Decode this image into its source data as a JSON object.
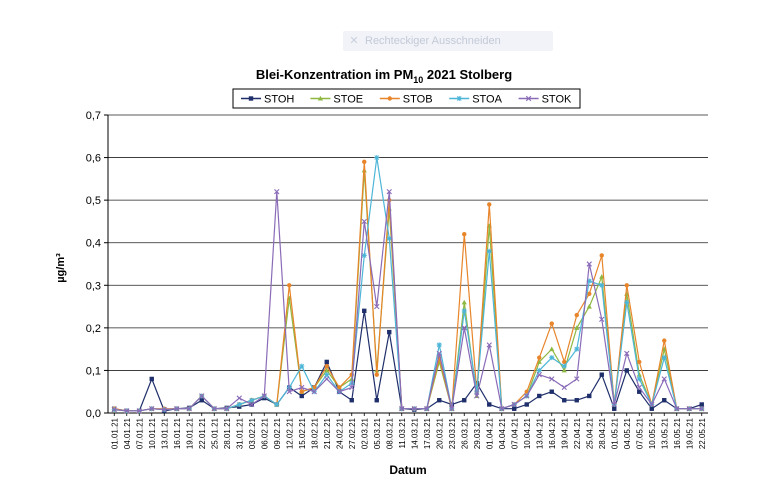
{
  "overlay": {
    "label": "Rechteckiger Ausschneiden",
    "icon": "close-icon"
  },
  "chart_data": {
    "type": "line",
    "title_main": "Blei-Konzentration im PM",
    "title_sub": "10",
    "title_rest": " 2021 Stolberg",
    "xlabel": "Datum",
    "ylabel": "µg/m³",
    "ylim": [
      0,
      0.7
    ],
    "yticks": [
      "0,0",
      "0,1",
      "0,2",
      "0,3",
      "0,4",
      "0,5",
      "0,6",
      "0,7"
    ],
    "grid": true,
    "legend_position": "top",
    "x": [
      "01.01.21",
      "04.01.21",
      "07.01.21",
      "10.01.21",
      "13.01.21",
      "16.01.21",
      "19.01.21",
      "22.01.21",
      "25.01.21",
      "28.01.21",
      "31.01.21",
      "03.02.21",
      "06.02.21",
      "09.02.21",
      "12.02.21",
      "15.02.21",
      "18.02.21",
      "21.02.21",
      "24.02.21",
      "27.02.21",
      "02.03.21",
      "05.03.21",
      "08.03.21",
      "11.03.21",
      "14.03.21",
      "17.03.21",
      "20.03.21",
      "23.03.21",
      "26.03.21",
      "29.03.21",
      "01.04.21",
      "04.04.21",
      "07.04.21",
      "10.04.21",
      "13.04.21",
      "16.04.21",
      "19.04.21",
      "22.04.21",
      "25.04.21",
      "28.04.21",
      "01.05.21",
      "04.05.21",
      "07.05.21",
      "10.05.21",
      "13.05.21",
      "16.05.21",
      "19.05.21",
      "22.05.21"
    ],
    "series": [
      {
        "name": "STOH",
        "color": "#1f2f6b",
        "marker": "square",
        "values": [
          0.01,
          0.005,
          0.005,
          0.08,
          0.005,
          0.01,
          0.012,
          0.03,
          0.01,
          0.012,
          0.015,
          0.02,
          0.035,
          0.02,
          0.06,
          0.04,
          0.06,
          0.12,
          0.05,
          0.03,
          0.24,
          0.03,
          0.19,
          0.01,
          0.008,
          0.01,
          0.03,
          0.02,
          0.03,
          0.07,
          0.02,
          0.01,
          0.01,
          0.02,
          0.04,
          0.05,
          0.03,
          0.03,
          0.04,
          0.09,
          0.01,
          0.1,
          0.05,
          0.01,
          0.03,
          0.01,
          0.01,
          0.02
        ]
      },
      {
        "name": "STOE",
        "color": "#8fb842",
        "marker": "triangle",
        "values": [
          0.008,
          0.005,
          0.005,
          0.01,
          0.008,
          0.01,
          0.01,
          0.04,
          0.01,
          0.01,
          0.02,
          0.03,
          0.04,
          0.02,
          0.27,
          0.05,
          0.06,
          0.1,
          0.06,
          0.08,
          0.57,
          0.1,
          0.48,
          0.01,
          0.01,
          0.01,
          0.12,
          0.01,
          0.26,
          0.04,
          0.44,
          0.01,
          0.02,
          0.04,
          0.12,
          0.15,
          0.1,
          0.2,
          0.25,
          0.32,
          0.02,
          0.28,
          0.09,
          0.02,
          0.15,
          0.01,
          0.01,
          0.01
        ]
      },
      {
        "name": "STOB",
        "color": "#e8852a",
        "marker": "circle",
        "values": [
          0.01,
          0.005,
          0.005,
          0.01,
          0.01,
          0.01,
          0.01,
          0.04,
          0.01,
          0.01,
          0.02,
          0.03,
          0.04,
          0.02,
          0.3,
          0.05,
          0.06,
          0.11,
          0.06,
          0.09,
          0.59,
          0.09,
          0.5,
          0.01,
          0.01,
          0.01,
          0.13,
          0.01,
          0.42,
          0.05,
          0.49,
          0.01,
          0.02,
          0.05,
          0.13,
          0.21,
          0.12,
          0.23,
          0.28,
          0.37,
          0.02,
          0.3,
          0.12,
          0.02,
          0.17,
          0.01,
          0.01,
          0.01
        ]
      },
      {
        "name": "STOA",
        "color": "#4db6d8",
        "marker": "star",
        "values": [
          0.008,
          0.005,
          0.005,
          0.01,
          0.008,
          0.01,
          0.01,
          0.04,
          0.01,
          0.01,
          0.02,
          0.03,
          0.04,
          0.02,
          0.06,
          0.11,
          0.05,
          0.09,
          0.05,
          0.07,
          0.37,
          0.6,
          0.41,
          0.01,
          0.01,
          0.01,
          0.16,
          0.01,
          0.24,
          0.05,
          0.38,
          0.01,
          0.02,
          0.04,
          0.1,
          0.13,
          0.11,
          0.15,
          0.31,
          0.3,
          0.02,
          0.26,
          0.08,
          0.02,
          0.13,
          0.01,
          0.01,
          0.01
        ]
      },
      {
        "name": "STOK",
        "color": "#8a6bb8",
        "marker": "x",
        "values": [
          0.008,
          0.005,
          0.005,
          0.01,
          0.008,
          0.01,
          0.01,
          0.04,
          0.01,
          0.01,
          0.035,
          0.02,
          0.04,
          0.52,
          0.05,
          0.06,
          0.05,
          0.08,
          0.05,
          0.06,
          0.45,
          0.25,
          0.52,
          0.01,
          0.01,
          0.01,
          0.14,
          0.01,
          0.2,
          0.04,
          0.16,
          0.01,
          0.02,
          0.04,
          0.09,
          0.08,
          0.06,
          0.08,
          0.35,
          0.22,
          0.02,
          0.14,
          0.06,
          0.02,
          0.08,
          0.01,
          0.01,
          0.01
        ]
      }
    ]
  }
}
